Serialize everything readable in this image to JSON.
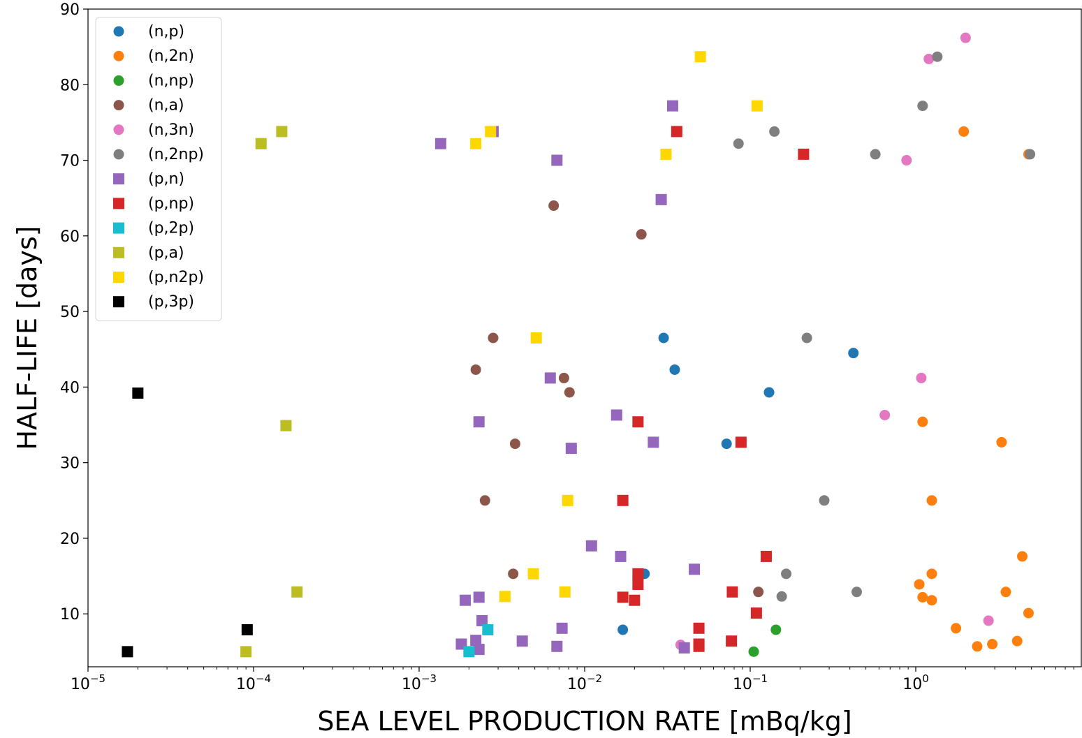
{
  "chart_data": {
    "type": "scatter",
    "title": "",
    "xlabel": "SEA LEVEL PRODUCTION RATE [mBq/kg]",
    "ylabel": "HALF-LIFE [days]",
    "xscale": "log",
    "xlim": [
      1e-05,
      10
    ],
    "ylim": [
      3,
      90
    ],
    "x_ticks": [
      {
        "value": 1e-05,
        "base": "10",
        "exp": "−5"
      },
      {
        "value": 0.0001,
        "base": "10",
        "exp": "−4"
      },
      {
        "value": 0.001,
        "base": "10",
        "exp": "−3"
      },
      {
        "value": 0.01,
        "base": "10",
        "exp": "−2"
      },
      {
        "value": 0.1,
        "base": "10",
        "exp": "−1"
      },
      {
        "value": 1,
        "base": "10",
        "exp": "0"
      }
    ],
    "y_ticks": [
      10,
      20,
      30,
      40,
      50,
      60,
      70,
      80,
      90
    ],
    "grid": false,
    "legend_position": "top-left",
    "series": [
      {
        "name": "(n,p)",
        "marker": "circle",
        "color": "#1f77b4",
        "points": [
          [
            0.03,
            46.5
          ],
          [
            0.035,
            42.3
          ],
          [
            0.13,
            39.3
          ],
          [
            0.42,
            44.5
          ],
          [
            0.072,
            32.5
          ],
          [
            0.023,
            15.3
          ],
          [
            0.017,
            7.9
          ]
        ]
      },
      {
        "name": "(n,2n)",
        "marker": "circle",
        "color": "#ff7f0e",
        "points": [
          [
            1.95,
            73.8
          ],
          [
            4.8,
            70.8
          ],
          [
            1.1,
            35.4
          ],
          [
            3.3,
            32.7
          ],
          [
            1.25,
            25
          ],
          [
            4.4,
            17.6
          ],
          [
            1.25,
            15.3
          ],
          [
            1.05,
            13.9
          ],
          [
            1.1,
            12.2
          ],
          [
            1.25,
            11.8
          ],
          [
            3.5,
            12.9
          ],
          [
            4.8,
            10.1
          ],
          [
            1.75,
            8.1
          ],
          [
            2.35,
            5.7
          ],
          [
            2.9,
            6
          ],
          [
            4.1,
            6.4
          ]
        ]
      },
      {
        "name": "(n,np)",
        "marker": "circle",
        "color": "#2ca02c",
        "points": [
          [
            0.143,
            7.9
          ],
          [
            0.105,
            5
          ]
        ]
      },
      {
        "name": "(n,a)",
        "marker": "circle",
        "color": "#8c564b",
        "points": [
          [
            0.0065,
            64
          ],
          [
            0.022,
            60.2
          ],
          [
            0.0028,
            46.5
          ],
          [
            0.0022,
            42.3
          ],
          [
            0.0075,
            41.2
          ],
          [
            0.0081,
            39.3
          ],
          [
            0.0038,
            32.5
          ],
          [
            0.0025,
            25
          ],
          [
            0.0037,
            15.3
          ],
          [
            0.112,
            12.9
          ]
        ]
      },
      {
        "name": "(n,3n)",
        "marker": "circle",
        "color": "#e377c2",
        "points": [
          [
            2.0,
            86.2
          ],
          [
            1.2,
            83.4
          ],
          [
            0.88,
            70
          ],
          [
            1.08,
            41.2
          ],
          [
            0.65,
            36.3
          ],
          [
            2.75,
            9.1
          ],
          [
            0.038,
            5.9
          ]
        ]
      },
      {
        "name": "(n,2np)",
        "marker": "circle",
        "color": "#7f7f7f",
        "points": [
          [
            1.35,
            83.7
          ],
          [
            1.1,
            77.2
          ],
          [
            0.085,
            72.2
          ],
          [
            0.14,
            73.8
          ],
          [
            0.57,
            70.8
          ],
          [
            4.9,
            70.8
          ],
          [
            0.22,
            46.5
          ],
          [
            0.28,
            25
          ],
          [
            0.165,
            15.3
          ],
          [
            0.155,
            12.3
          ],
          [
            0.44,
            12.9
          ]
        ]
      },
      {
        "name": "(p,n)",
        "marker": "square",
        "color": "#9467bd",
        "points": [
          [
            0.034,
            77.2
          ],
          [
            0.0028,
            73.8
          ],
          [
            0.00135,
            72.2
          ],
          [
            0.0068,
            70
          ],
          [
            0.029,
            64.8
          ],
          [
            0.0062,
            41.2
          ],
          [
            0.0023,
            35.4
          ],
          [
            0.0156,
            36.3
          ],
          [
            0.0083,
            31.9
          ],
          [
            0.026,
            32.7
          ],
          [
            0.011,
            19
          ],
          [
            0.0165,
            17.6
          ],
          [
            0.046,
            15.9
          ],
          [
            0.0019,
            11.8
          ],
          [
            0.0023,
            12.2
          ],
          [
            0.0024,
            9.1
          ],
          [
            0.0073,
            8.1
          ],
          [
            0.0042,
            6.4
          ],
          [
            0.0022,
            6.5
          ],
          [
            0.0018,
            6
          ],
          [
            0.0023,
            5.3
          ],
          [
            0.0068,
            5.7
          ],
          [
            0.04,
            5.5
          ]
        ]
      },
      {
        "name": "(p,np)",
        "marker": "square",
        "color": "#d62728",
        "points": [
          [
            0.036,
            73.8
          ],
          [
            0.21,
            70.8
          ],
          [
            0.021,
            35.4
          ],
          [
            0.088,
            32.7
          ],
          [
            0.017,
            25
          ],
          [
            0.125,
            17.6
          ],
          [
            0.021,
            15.3
          ],
          [
            0.021,
            13.9
          ],
          [
            0.017,
            12.2
          ],
          [
            0.02,
            11.8
          ],
          [
            0.078,
            12.9
          ],
          [
            0.109,
            10.1
          ],
          [
            0.049,
            8.1
          ],
          [
            0.049,
            6
          ],
          [
            0.049,
            5.7
          ],
          [
            0.077,
            6.4
          ]
        ]
      },
      {
        "name": "(p,2p)",
        "marker": "square",
        "color": "#17becf",
        "points": [
          [
            0.0026,
            7.9
          ],
          [
            0.002,
            5
          ]
        ]
      },
      {
        "name": "(p,a)",
        "marker": "square",
        "color": "#bcbd22",
        "points": [
          [
            0.000148,
            73.8
          ],
          [
            0.000111,
            72.2
          ],
          [
            0.000157,
            34.9
          ],
          [
            0.000183,
            12.9
          ],
          [
            9e-05,
            5
          ]
        ]
      },
      {
        "name": "(p,n2p)",
        "marker": "square",
        "color": "#ffd700",
        "points": [
          [
            0.05,
            83.7
          ],
          [
            0.11,
            77.2
          ],
          [
            0.0027,
            73.8
          ],
          [
            0.0022,
            72.2
          ],
          [
            0.031,
            70.8
          ],
          [
            0.0051,
            46.5
          ],
          [
            0.0079,
            25
          ],
          [
            0.0049,
            15.3
          ],
          [
            0.0076,
            12.9
          ],
          [
            0.0033,
            12.3
          ]
        ]
      },
      {
        "name": "(p,3p)",
        "marker": "square",
        "color": "#000000",
        "points": [
          [
            2e-05,
            39.2
          ],
          [
            1.73e-05,
            5
          ],
          [
            9.15e-05,
            7.9
          ]
        ]
      }
    ]
  }
}
